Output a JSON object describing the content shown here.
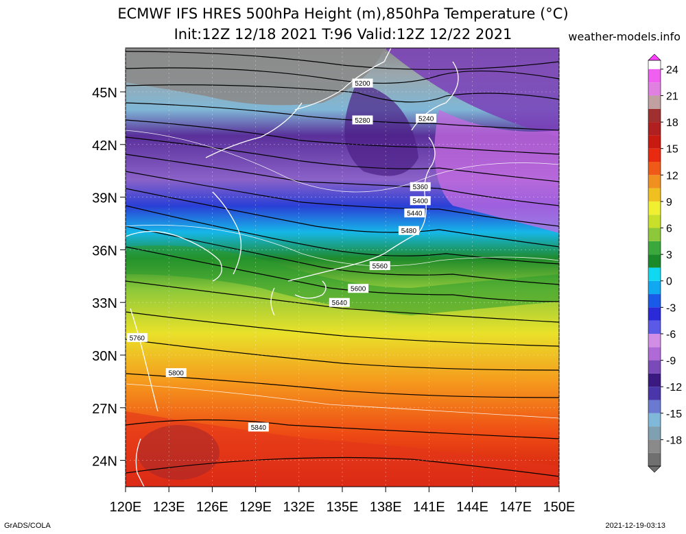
{
  "title_line1": "ECMWF IFS HRES 500hPa Height (m),850hPa Temperature (°C)",
  "title_line2": "Init:12Z 12/18 2021 T:96 Valid:12Z 12/22 2021",
  "site": "weather-models.info",
  "credit": "GrADS/COLA",
  "timestamp": "2021-12-19-03:13",
  "lon_ticks": [
    "120E",
    "123E",
    "126E",
    "129E",
    "132E",
    "135E",
    "138E",
    "141E",
    "144E",
    "147E",
    "150E"
  ],
  "lat_ticks": [
    "24N",
    "27N",
    "30N",
    "33N",
    "36N",
    "39N",
    "42N",
    "45N"
  ],
  "lon_range": [
    120,
    150
  ],
  "lat_range": [
    22.5,
    47.5
  ],
  "colorbar": {
    "labels": [
      "24",
      "21",
      "18",
      "15",
      "12",
      "9",
      "6",
      "3",
      "0",
      "-3",
      "-6",
      "-9",
      "-12",
      "-15",
      "-18"
    ],
    "values": [
      24,
      21,
      18,
      15,
      12,
      9,
      6,
      3,
      0,
      -3,
      -6,
      -9,
      -12,
      -15,
      -18
    ],
    "range": [
      -21,
      25
    ]
  },
  "height_contours": [
    {
      "label": "5200",
      "lon": 136.4,
      "lat": 45.5
    },
    {
      "label": "5240",
      "lon": 140.8,
      "lat": 43.5
    },
    {
      "label": "5280",
      "lon": 136.4,
      "lat": 43.4
    },
    {
      "label": "5360",
      "lon": 140.4,
      "lat": 39.6
    },
    {
      "label": "5400",
      "lon": 140.4,
      "lat": 38.8
    },
    {
      "label": "5440",
      "lon": 140.0,
      "lat": 38.1
    },
    {
      "label": "5480",
      "lon": 139.6,
      "lat": 37.1
    },
    {
      "label": "5560",
      "lon": 137.6,
      "lat": 35.1
    },
    {
      "label": "5600",
      "lon": 136.1,
      "lat": 33.8
    },
    {
      "label": "5640",
      "lon": 134.8,
      "lat": 33.0
    },
    {
      "label": "5760",
      "lon": 120.8,
      "lat": 31.0
    },
    {
      "label": "5800",
      "lon": 123.5,
      "lat": 29.0
    },
    {
      "label": "5840",
      "lon": 129.2,
      "lat": 25.9
    }
  ],
  "colors": {
    "land_outline": "#ffffff",
    "contour_line": "#000000",
    "isotherm": "#ffffff"
  }
}
